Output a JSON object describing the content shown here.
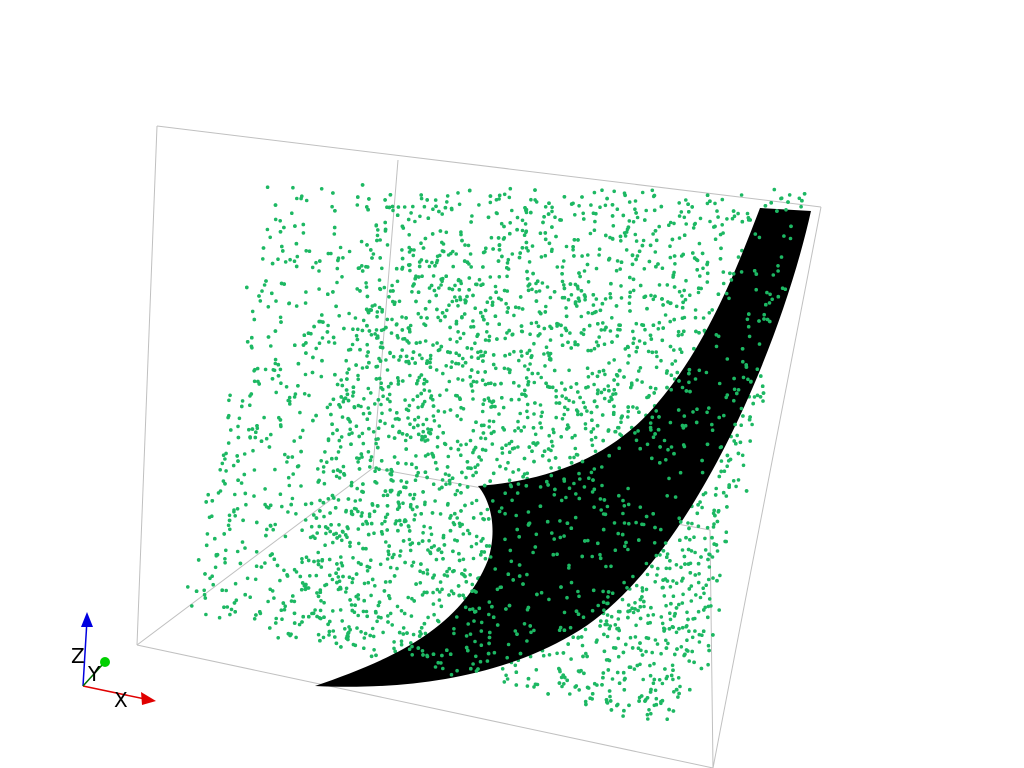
{
  "scene": {
    "background_color": "#ffffff",
    "bounding_box_color": "#c0c0c0",
    "point_color": "#1db863",
    "surface_color": "#000000"
  },
  "orientation_widget": {
    "x_label": "X",
    "y_label": "Y",
    "z_label": "Z",
    "x_color": "#e00000",
    "y_color": "#00d000",
    "z_color": "#0000e0"
  }
}
